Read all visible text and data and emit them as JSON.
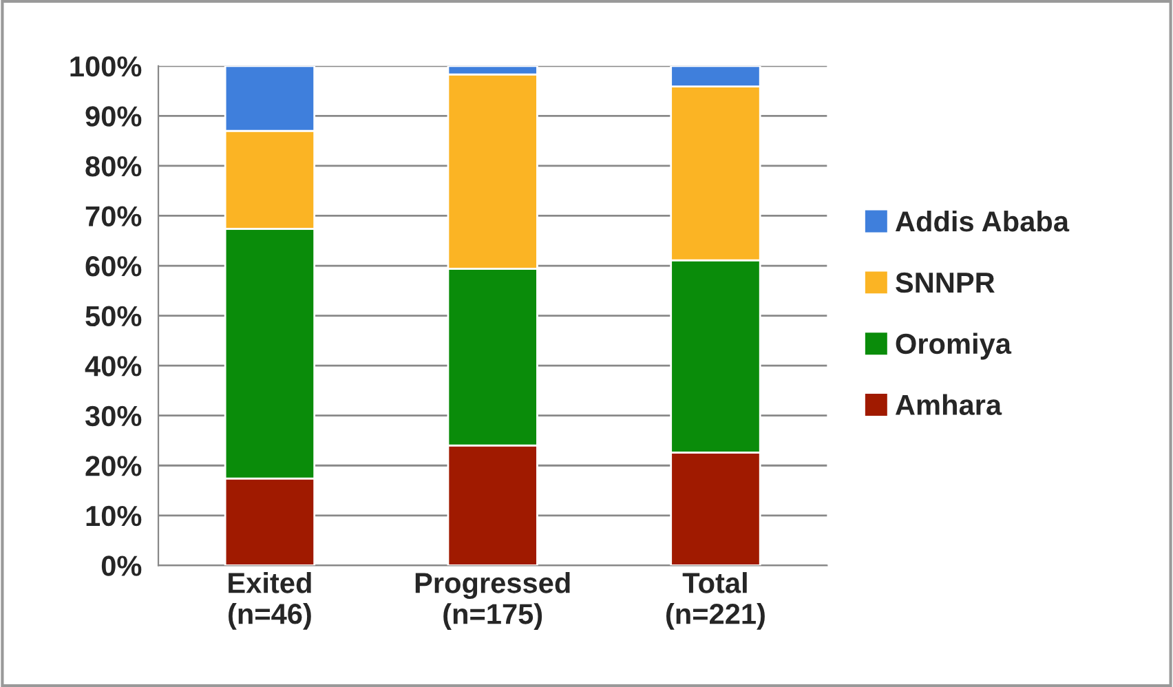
{
  "chart_data": {
    "type": "bar",
    "stacked": true,
    "categories": [
      "Exited\n(n=46)",
      "Progressed\n(n=175)",
      "Total\n(n=221)"
    ],
    "series": [
      {
        "name": "Amhara",
        "color": "#a01a00",
        "values": [
          17.4,
          24.0,
          22.6
        ]
      },
      {
        "name": "Oromiya",
        "color": "#0a8c0a",
        "values": [
          50.0,
          35.4,
          38.5
        ]
      },
      {
        "name": "SNNPR",
        "color": "#fbb424",
        "values": [
          19.6,
          38.9,
          34.8
        ]
      },
      {
        "name": "Addis Ababa",
        "color": "#3f7fdc",
        "values": [
          13.0,
          1.7,
          4.1
        ]
      }
    ],
    "ylim": [
      0,
      100
    ],
    "yticks": [
      {
        "value": 0,
        "label": "0%"
      },
      {
        "value": 10,
        "label": "10%"
      },
      {
        "value": 20,
        "label": "20%"
      },
      {
        "value": 30,
        "label": "30%"
      },
      {
        "value": 40,
        "label": "40%"
      },
      {
        "value": 50,
        "label": "50%"
      },
      {
        "value": 60,
        "label": "60%"
      },
      {
        "value": 70,
        "label": "70%"
      },
      {
        "value": 80,
        "label": "80%"
      },
      {
        "value": 90,
        "label": "90%"
      },
      {
        "value": 100,
        "label": "100%"
      }
    ],
    "grid": "y",
    "legend": "right"
  }
}
